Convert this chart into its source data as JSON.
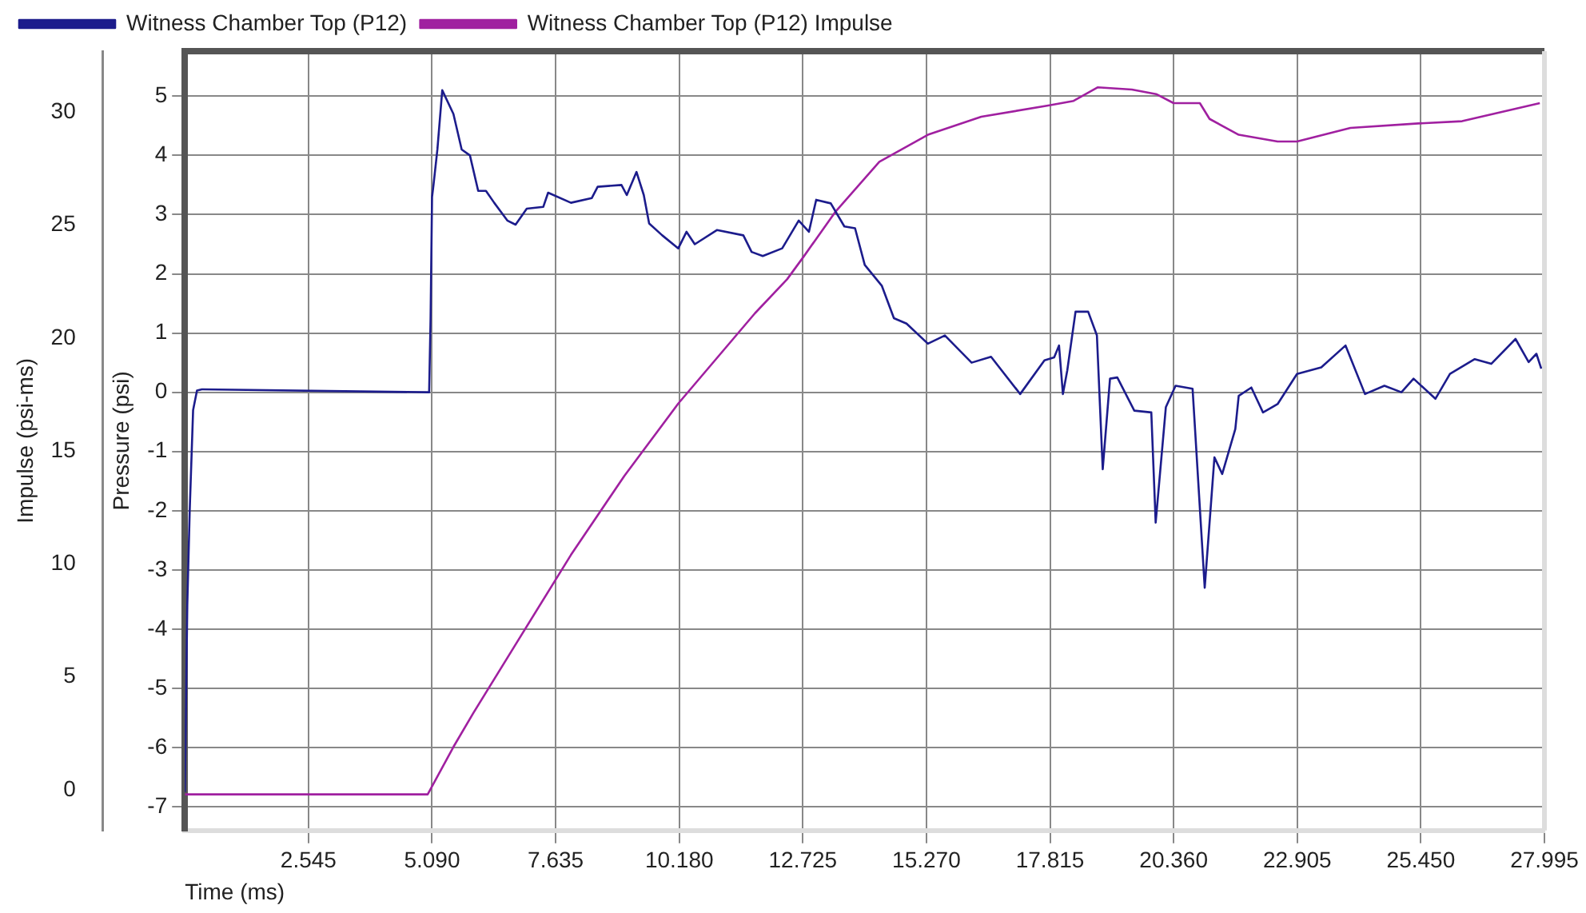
{
  "chart_data": {
    "type": "line",
    "xlabel": "Time (ms)",
    "ylabel": "Pressure (psi)",
    "y2label": "Impulse (psi-ms)",
    "xlim": [
      0,
      27.995
    ],
    "xticks": [
      {
        "value": 2.545,
        "label": "2.545"
      },
      {
        "value": 5.09,
        "label": "5.090"
      },
      {
        "value": 7.635,
        "label": "7.635"
      },
      {
        "value": 10.18,
        "label": "10.180"
      },
      {
        "value": 12.725,
        "label": "12.725"
      },
      {
        "value": 15.27,
        "label": "15.270"
      },
      {
        "value": 17.815,
        "label": "17.815"
      },
      {
        "value": 20.36,
        "label": "20.360"
      },
      {
        "value": 22.905,
        "label": "22.905"
      },
      {
        "value": 25.45,
        "label": "25.450"
      },
      {
        "value": 27.995,
        "label": "27.995"
      }
    ],
    "ylim": [
      -7.4,
      5.76
    ],
    "yticks": [
      -7,
      -6,
      -5,
      -4,
      -3,
      -2,
      -1,
      0,
      1,
      2,
      3,
      4,
      5
    ],
    "y2lim": [
      -1.8,
      32.7
    ],
    "y2ticks": [
      0,
      5,
      10,
      15,
      20,
      25,
      30
    ],
    "grid": true,
    "legend": "top",
    "marker": "none",
    "line_style": "solid",
    "series": [
      {
        "name": "Witness Chamber Top (P12)",
        "color": "#1c1c8c",
        "x": [
          0,
          0.05,
          0.1,
          0.17,
          0.25,
          0.35,
          5.0,
          5.03,
          5.06,
          5.09,
          5.12,
          5.2,
          5.3,
          5.53,
          5.7,
          5.87,
          6.04,
          6.2,
          6.37,
          6.64,
          6.81,
          7.04,
          7.38,
          7.48,
          7.95,
          8.38,
          8.5,
          8.99,
          9.1,
          9.3,
          9.45,
          9.56,
          9.83,
          10.16,
          10.33,
          10.5,
          10.96,
          11.5,
          11.67,
          11.9,
          12.3,
          12.64,
          12.85,
          13.0,
          13.3,
          13.58,
          13.8,
          14.0,
          14.35,
          14.6,
          14.86,
          15.3,
          15.65,
          16.2,
          16.6,
          17.2,
          17.7,
          17.9,
          18.0,
          18.08,
          18.17,
          18.34,
          18.6,
          18.78,
          18.9,
          19.05,
          19.2,
          19.55,
          19.9,
          19.99,
          20.2,
          20.4,
          20.75,
          21.0,
          21.2,
          21.36,
          21.63,
          21.7,
          21.96,
          22.2,
          22.5,
          22.9,
          23.4,
          23.9,
          24.3,
          24.7,
          25.05,
          25.3,
          25.75,
          26.05,
          26.56,
          26.9,
          27.4,
          27.67,
          27.83,
          27.93
        ],
        "values": [
          -6.75,
          -3.6,
          -2,
          -0.3,
          0.03,
          0.05,
          0,
          0,
          1.25,
          3.3,
          3.5,
          4.1,
          5.1,
          4.7,
          4.1,
          4.0,
          3.4,
          3.4,
          3.2,
          2.9,
          2.83,
          3.1,
          3.13,
          3.37,
          3.2,
          3.28,
          3.47,
          3.5,
          3.33,
          3.72,
          3.33,
          2.85,
          2.65,
          2.43,
          2.71,
          2.5,
          2.74,
          2.65,
          2.37,
          2.3,
          2.43,
          2.9,
          2.71,
          3.25,
          3.19,
          2.8,
          2.77,
          2.15,
          1.8,
          1.25,
          1.16,
          0.82,
          0.96,
          0.5,
          0.6,
          -0.03,
          0.54,
          0.59,
          0.79,
          -0.03,
          0.37,
          1.36,
          1.36,
          0.96,
          -1.3,
          0.23,
          0.25,
          -0.31,
          -0.34,
          -2.2,
          -0.25,
          0.11,
          0.06,
          -3.3,
          -1.1,
          -1.38,
          -0.62,
          -0.06,
          0.08,
          -0.34,
          -0.2,
          0.31,
          0.42,
          0.79,
          -0.03,
          0.11,
          0,
          0.23,
          -0.11,
          0.31,
          0.56,
          0.48,
          0.9,
          0.51,
          0.65,
          0.4
        ]
      },
      {
        "name": "Witness Chamber Top (P12) Impulse",
        "color": "#a020a0",
        "axis": "y2",
        "x": [
          0,
          5.0,
          5.53,
          5.94,
          6.8,
          7.95,
          9.05,
          10.16,
          11.74,
          12.4,
          12.74,
          13.4,
          14.3,
          15.3,
          16.4,
          17.8,
          18.3,
          18.8,
          19.5,
          20.0,
          20.36,
          20.9,
          21.1,
          21.7,
          22.5,
          22.9,
          24.0,
          25.4,
          26.3,
          27.9
        ],
        "values": [
          -0.2,
          -0.2,
          1.9,
          3.4,
          6.4,
          10.4,
          13.9,
          17.1,
          21.1,
          22.6,
          23.6,
          25.6,
          27.8,
          29.0,
          29.8,
          30.3,
          30.5,
          31.1,
          31.0,
          30.8,
          30.4,
          30.4,
          29.7,
          29.0,
          28.7,
          28.7,
          29.3,
          29.5,
          29.6,
          30.4
        ]
      }
    ]
  }
}
